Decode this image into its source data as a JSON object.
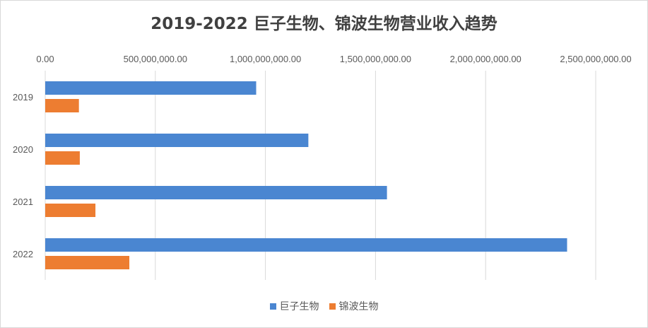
{
  "chart_data": {
    "type": "bar",
    "orientation": "horizontal",
    "title": "2019-2022 巨子生物、锦波生物营业收入趋势",
    "categories": [
      "2019",
      "2020",
      "2021",
      "2022"
    ],
    "series": [
      {
        "name": "巨子生物",
        "color": "#4a86d1",
        "values": [
          958000000,
          1195000000,
          1552000000,
          2370000000
        ]
      },
      {
        "name": "锦波生物",
        "color": "#ed7d31",
        "values": [
          153000000,
          157000000,
          228000000,
          382000000
        ]
      }
    ],
    "xlim": [
      0,
      2500000000
    ],
    "x_ticks": [
      "0.00",
      "500,000,000.00",
      "1,000,000,000.00",
      "1,500,000,000.00",
      "2,000,000,000.00",
      "2,500,000,000.00"
    ],
    "x_tick_values": [
      0,
      500000000,
      1000000000,
      1500000000,
      2000000000,
      2500000000
    ],
    "x_axis_position": "top",
    "category_order": "top-to-bottom",
    "grid": true,
    "legend_position": "bottom"
  }
}
